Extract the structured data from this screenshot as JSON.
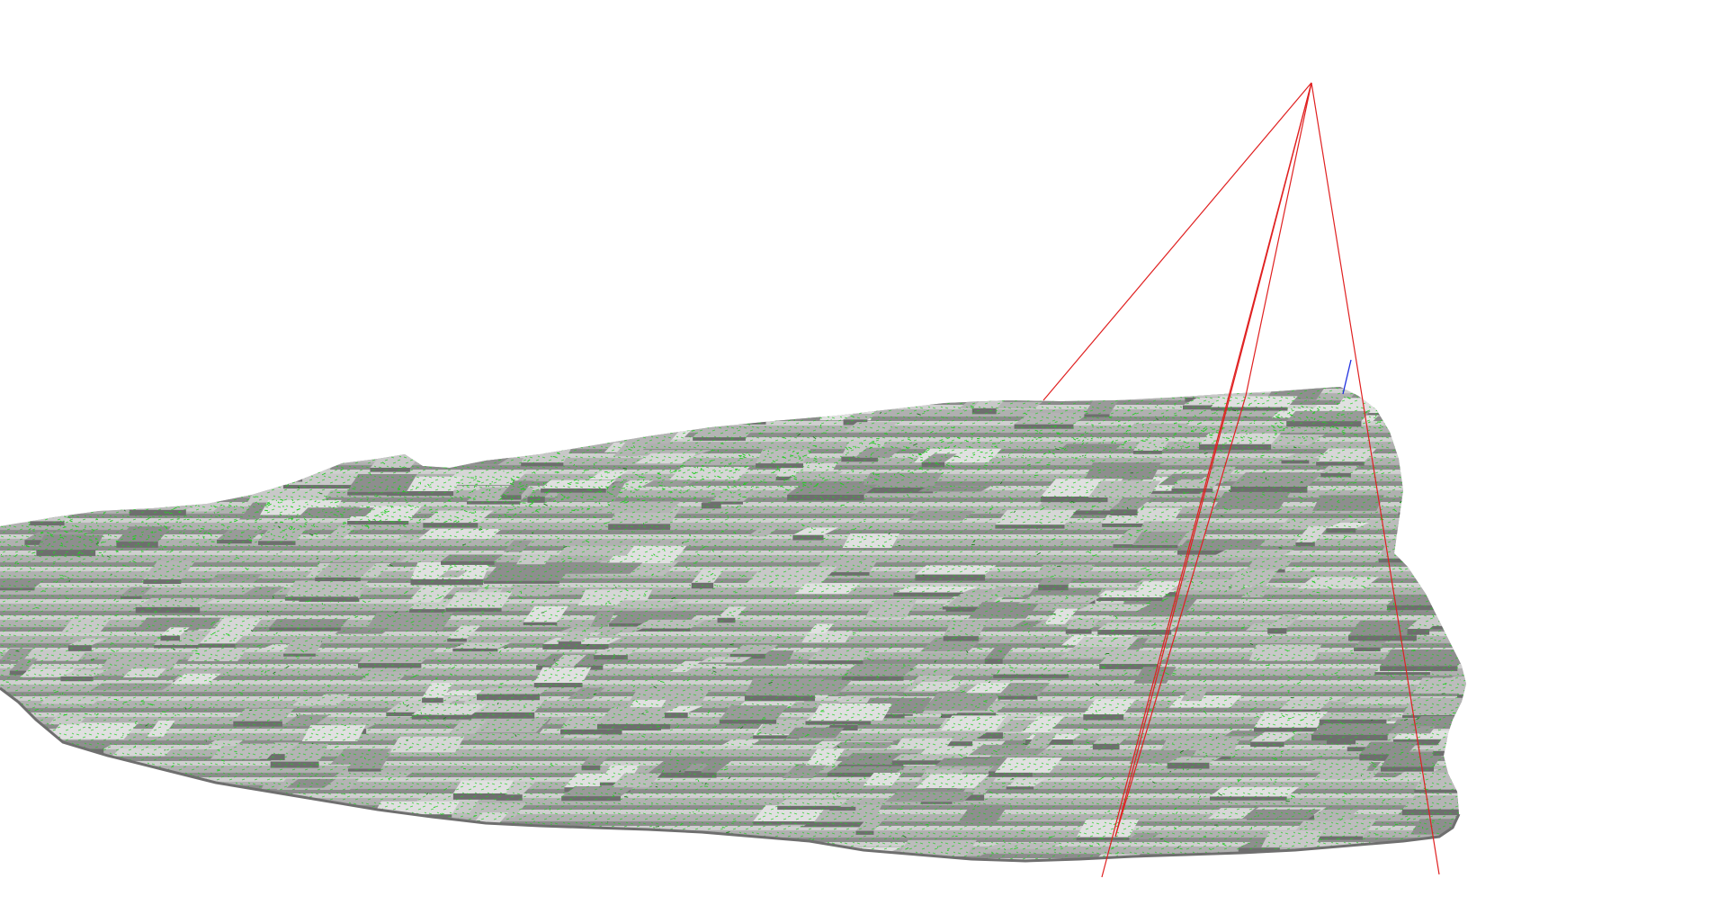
{
  "scene": {
    "background_color": "#ffffff",
    "mesh_color": "#a8a8a8",
    "mesh_dark_color": "#7a7a7a",
    "mesh_light_color": "#d4d4d4",
    "wire_color": "#22cc22",
    "frustum_color": "#e02020",
    "axis_color": "#2030e0",
    "objects": [
      "terrain-mesh",
      "camera-frustum",
      "axis-indicator"
    ]
  }
}
